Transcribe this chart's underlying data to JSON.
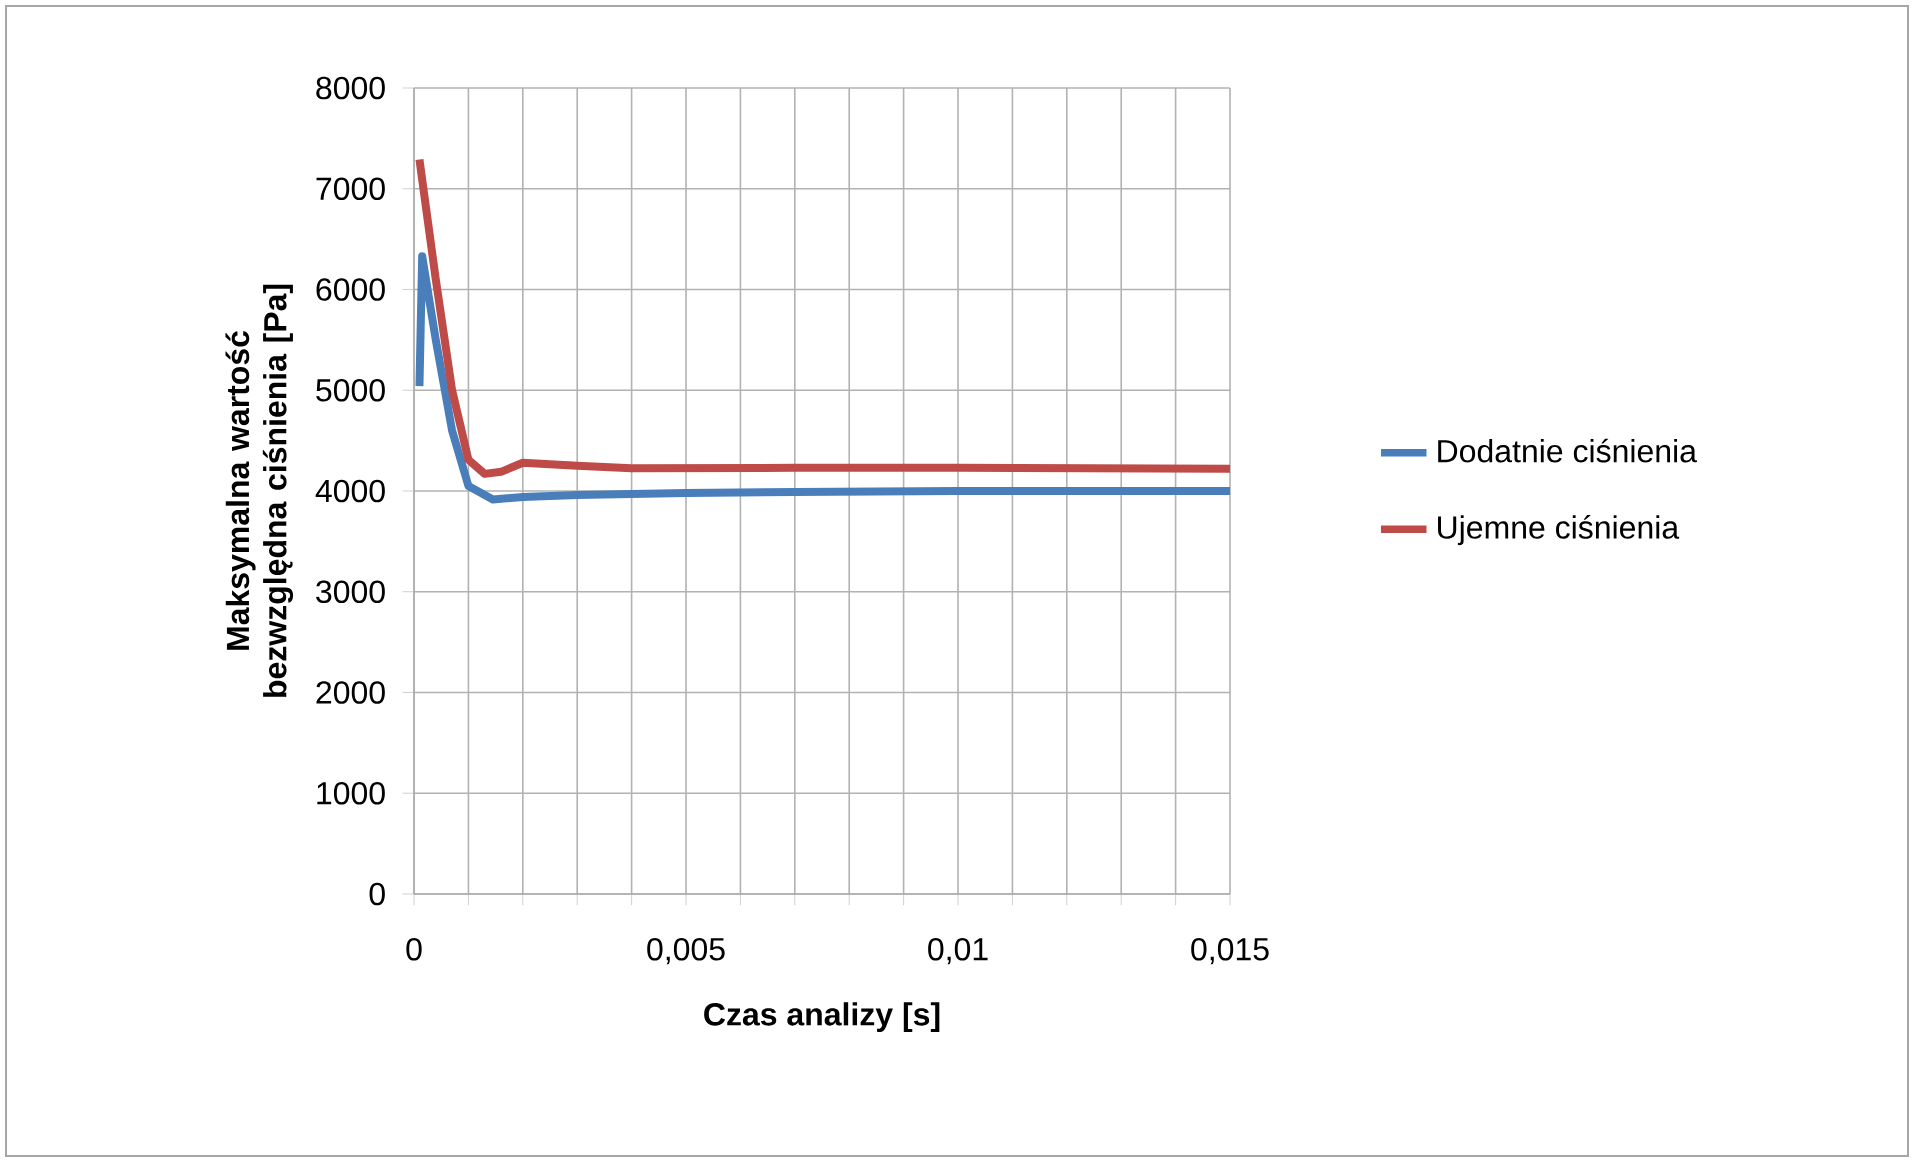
{
  "chart_data": {
    "type": "line",
    "xlabel": "Czas analizy [s]",
    "ylabel": "Maksymalna wartość bezwzględna ciśnienia [Pa]",
    "xlim": [
      0,
      0.015
    ],
    "ylim": [
      0,
      8000
    ],
    "xticks": [
      {
        "value": 0,
        "label": "0"
      },
      {
        "value": 0.001,
        "label": null
      },
      {
        "value": 0.002,
        "label": null
      },
      {
        "value": 0.003,
        "label": null
      },
      {
        "value": 0.004,
        "label": null
      },
      {
        "value": 0.005,
        "label": "0,005"
      },
      {
        "value": 0.006,
        "label": null
      },
      {
        "value": 0.007,
        "label": null
      },
      {
        "value": 0.008,
        "label": null
      },
      {
        "value": 0.009,
        "label": null
      },
      {
        "value": 0.01,
        "label": "0,01"
      },
      {
        "value": 0.011,
        "label": null
      },
      {
        "value": 0.012,
        "label": null
      },
      {
        "value": 0.013,
        "label": null
      },
      {
        "value": 0.014,
        "label": null
      },
      {
        "value": 0.015,
        "label": "0,015"
      }
    ],
    "yticks": [
      0,
      1000,
      2000,
      3000,
      4000,
      5000,
      6000,
      7000,
      8000
    ],
    "grid": true,
    "legend": "right",
    "marker": "none",
    "line_style": "solid",
    "series": [
      {
        "name": "Dodatnie ciśnienia",
        "color": "#4a7ebb",
        "x": [
          0.0001,
          0.00015,
          0.0004,
          0.0007,
          0.001,
          0.00145,
          0.002,
          0.003,
          0.004,
          0.005,
          0.007,
          0.01,
          0.015
        ],
        "values": [
          5040,
          6330,
          5500,
          4600,
          4050,
          3915,
          3940,
          3960,
          3970,
          3980,
          3990,
          4000,
          4000
        ]
      },
      {
        "name": "Ujemne ciśnienia",
        "color": "#be4b48",
        "x": [
          0.0001,
          0.0004,
          0.0007,
          0.001,
          0.0013,
          0.0016,
          0.002,
          0.003,
          0.004,
          0.007,
          0.01,
          0.015
        ],
        "values": [
          7290,
          6100,
          5000,
          4310,
          4170,
          4190,
          4280,
          4250,
          4225,
          4230,
          4230,
          4220
        ]
      }
    ]
  }
}
